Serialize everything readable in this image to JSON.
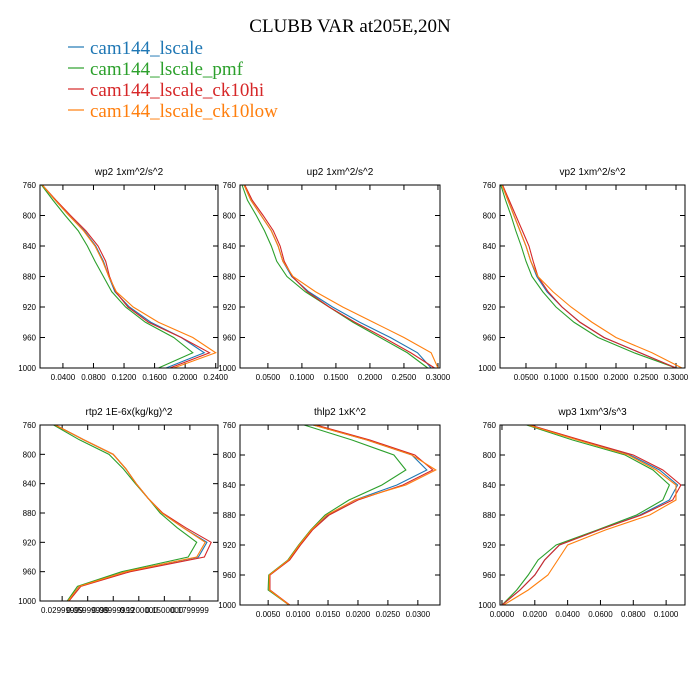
{
  "title": "CLUBB VAR at205E,20N",
  "legend": [
    {
      "name": "cam144_lscale",
      "color": "#1f77b4"
    },
    {
      "name": "cam144_lscale_pmf",
      "color": "#2ca02c"
    },
    {
      "name": "cam144_lscale_ck10hi",
      "color": "#d62728"
    },
    {
      "name": "cam144_lscale_ck10low",
      "color": "#ff7f0e"
    }
  ],
  "chart_data": [
    {
      "type": "line",
      "title": "wp2  1xm^2/s^2",
      "y": [
        760,
        780,
        800,
        820,
        840,
        860,
        880,
        900,
        920,
        940,
        960,
        980,
        1000
      ],
      "series": [
        {
          "values": [
            0.013,
            0.03,
            0.048,
            0.068,
            0.083,
            0.093,
            0.1,
            0.108,
            0.127,
            0.155,
            0.195,
            0.225,
            0.175
          ]
        },
        {
          "values": [
            0.012,
            0.027,
            0.043,
            0.06,
            0.072,
            0.082,
            0.093,
            0.104,
            0.122,
            0.148,
            0.185,
            0.21,
            0.165
          ]
        },
        {
          "values": [
            0.013,
            0.031,
            0.05,
            0.07,
            0.086,
            0.096,
            0.101,
            0.109,
            0.125,
            0.152,
            0.195,
            0.232,
            0.18
          ]
        },
        {
          "values": [
            0.013,
            0.03,
            0.048,
            0.067,
            0.082,
            0.092,
            0.1,
            0.11,
            0.132,
            0.165,
            0.21,
            0.24,
            0.185
          ]
        }
      ],
      "xlim": [
        0.01,
        0.243
      ],
      "ylim": [
        1000,
        760
      ],
      "xticks": [
        {
          "value": 0.04,
          "label": "0.0400"
        },
        {
          "value": 0.08,
          "label": "0.0800"
        },
        {
          "value": 0.12,
          "label": "0.1200"
        },
        {
          "value": 0.16,
          "label": "0.1600"
        },
        {
          "value": 0.2,
          "label": "0.2000"
        },
        {
          "value": 0.24,
          "label": "0.2400"
        }
      ],
      "yticks": [
        760,
        800,
        840,
        880,
        920,
        960,
        1000
      ]
    },
    {
      "type": "line",
      "title": "up2  1xm^2/s^2",
      "y": [
        760,
        780,
        800,
        820,
        840,
        860,
        880,
        900,
        920,
        940,
        960,
        980,
        1000
      ],
      "series": [
        {
          "values": [
            0.015,
            0.025,
            0.04,
            0.055,
            0.065,
            0.072,
            0.085,
            0.11,
            0.145,
            0.185,
            0.23,
            0.27,
            0.29
          ]
        },
        {
          "values": [
            0.012,
            0.02,
            0.033,
            0.045,
            0.055,
            0.063,
            0.078,
            0.105,
            0.14,
            0.175,
            0.215,
            0.255,
            0.285
          ]
        },
        {
          "values": [
            0.016,
            0.027,
            0.043,
            0.058,
            0.068,
            0.074,
            0.086,
            0.108,
            0.14,
            0.178,
            0.22,
            0.26,
            0.295
          ]
        },
        {
          "values": [
            0.015,
            0.025,
            0.04,
            0.055,
            0.065,
            0.072,
            0.087,
            0.12,
            0.16,
            0.205,
            0.25,
            0.29,
            0.3
          ]
        }
      ],
      "xlim": [
        0.009,
        0.303
      ],
      "ylim": [
        1000,
        760
      ],
      "xticks": [
        {
          "value": 0.05,
          "label": "0.0500"
        },
        {
          "value": 0.1,
          "label": "0.1000"
        },
        {
          "value": 0.15,
          "label": "0.1500"
        },
        {
          "value": 0.2,
          "label": "0.2000"
        },
        {
          "value": 0.25,
          "label": "0.2500"
        },
        {
          "value": 0.3,
          "label": "0.3000"
        }
      ],
      "yticks": [
        760,
        800,
        840,
        880,
        920,
        960,
        1000
      ]
    },
    {
      "type": "line",
      "title": "vp2  1xm^2/s^2",
      "y": [
        760,
        780,
        800,
        820,
        840,
        860,
        880,
        900,
        920,
        940,
        960,
        980,
        1000
      ],
      "series": [
        {
          "values": [
            0.01,
            0.02,
            0.03,
            0.04,
            0.05,
            0.058,
            0.068,
            0.085,
            0.11,
            0.14,
            0.18,
            0.24,
            0.3
          ]
        },
        {
          "values": [
            0.008,
            0.016,
            0.025,
            0.033,
            0.042,
            0.05,
            0.06,
            0.078,
            0.1,
            0.13,
            0.17,
            0.23,
            0.3
          ]
        },
        {
          "values": [
            0.011,
            0.022,
            0.033,
            0.044,
            0.055,
            0.062,
            0.07,
            0.087,
            0.11,
            0.14,
            0.18,
            0.24,
            0.3
          ]
        },
        {
          "values": [
            0.01,
            0.02,
            0.03,
            0.04,
            0.05,
            0.058,
            0.07,
            0.095,
            0.125,
            0.16,
            0.2,
            0.26,
            0.31
          ]
        }
      ],
      "xlim": [
        0.0067,
        0.315
      ],
      "ylim": [
        1000,
        760
      ],
      "xticks": [
        {
          "value": 0.05,
          "label": "0.0500"
        },
        {
          "value": 0.1,
          "label": "0.1000"
        },
        {
          "value": 0.15,
          "label": "0.1500"
        },
        {
          "value": 0.2,
          "label": "0.2000"
        },
        {
          "value": 0.25,
          "label": "0.2500"
        },
        {
          "value": 0.3,
          "label": "0.3000"
        }
      ],
      "yticks": [
        760,
        800,
        840,
        880,
        920,
        960,
        1000
      ]
    },
    {
      "type": "line",
      "title": "rtp2  1E-6x(kg/kg)^2",
      "y": [
        760,
        780,
        800,
        820,
        840,
        860,
        880,
        900,
        920,
        940,
        960,
        980,
        1000
      ],
      "series": [
        {
          "values": [
            0.022,
            0.055,
            0.09,
            0.105,
            0.117,
            0.131,
            0.147,
            0.172,
            0.2,
            0.19,
            0.105,
            0.05,
            0.037
          ]
        },
        {
          "values": [
            0.02,
            0.05,
            0.085,
            0.102,
            0.116,
            0.131,
            0.145,
            0.165,
            0.188,
            0.178,
            0.1,
            0.048,
            0.036
          ]
        },
        {
          "values": [
            0.022,
            0.055,
            0.09,
            0.105,
            0.117,
            0.131,
            0.148,
            0.175,
            0.205,
            0.197,
            0.11,
            0.052,
            0.038
          ]
        },
        {
          "values": [
            0.022,
            0.055,
            0.09,
            0.105,
            0.117,
            0.131,
            0.147,
            0.172,
            0.198,
            0.188,
            0.105,
            0.05,
            0.037
          ]
        }
      ],
      "xlim": [
        0.004,
        0.213
      ],
      "ylim": [
        1000,
        760
      ],
      "xticks": [
        {
          "value": 0.03,
          "label": "0.02999999"
        },
        {
          "value": 0.06,
          "label": "0.05999999"
        },
        {
          "value": 0.09,
          "label": "0.08999999"
        },
        {
          "value": 0.12,
          "label": "0.1200000"
        },
        {
          "value": 0.15,
          "label": "0.1500000"
        },
        {
          "value": 0.18,
          "label": "0.1799999"
        }
      ],
      "yticks": [
        760,
        800,
        840,
        880,
        920,
        960,
        1000
      ]
    },
    {
      "type": "line",
      "title": "thlp2  1xK^2",
      "y": [
        760,
        780,
        800,
        820,
        840,
        860,
        880,
        900,
        920,
        940,
        960,
        980,
        1000
      ],
      "series": [
        {
          "values": [
            0.0125,
            0.0215,
            0.029,
            0.0315,
            0.0265,
            0.0195,
            0.015,
            0.0123,
            0.0103,
            0.0085,
            0.0052,
            0.0052,
            0.0085
          ]
        },
        {
          "values": [
            0.011,
            0.019,
            0.026,
            0.028,
            0.024,
            0.0185,
            0.0145,
            0.0121,
            0.0101,
            0.0083,
            0.0051,
            0.005,
            0.0085
          ]
        },
        {
          "values": [
            0.013,
            0.022,
            0.0295,
            0.0325,
            0.0275,
            0.02,
            0.0152,
            0.0124,
            0.0104,
            0.0086,
            0.0053,
            0.0053,
            0.0086
          ]
        },
        {
          "values": [
            0.0125,
            0.0215,
            0.029,
            0.033,
            0.028,
            0.0195,
            0.0148,
            0.0122,
            0.0102,
            0.0084,
            0.0052,
            0.0052,
            0.0085
          ]
        }
      ],
      "xlim": [
        0.0003,
        0.0337
      ],
      "ylim": [
        1000,
        760
      ],
      "xticks": [
        {
          "value": 0.005,
          "label": "0.0050"
        },
        {
          "value": 0.01,
          "label": "0.0100"
        },
        {
          "value": 0.015,
          "label": "0.0150"
        },
        {
          "value": 0.02,
          "label": "0.0200"
        },
        {
          "value": 0.025,
          "label": "0.0250"
        },
        {
          "value": 0.03,
          "label": "0.0300"
        }
      ],
      "yticks": [
        760,
        800,
        840,
        880,
        920,
        960,
        1000
      ]
    },
    {
      "type": "line",
      "title": "wp3  1xm^3/s^3",
      "y": [
        760,
        780,
        800,
        820,
        840,
        860,
        880,
        900,
        920,
        940,
        960,
        980,
        1000
      ],
      "series": [
        {
          "values": [
            0.017,
            0.047,
            0.078,
            0.096,
            0.107,
            0.102,
            0.084,
            0.059,
            0.035,
            0.026,
            0.02,
            0.011,
            0
          ]
        },
        {
          "values": [
            0.015,
            0.043,
            0.075,
            0.092,
            0.102,
            0.098,
            0.082,
            0.058,
            0.033,
            0.022,
            0.016,
            0.009,
            0
          ]
        },
        {
          "values": [
            0.017,
            0.048,
            0.08,
            0.098,
            0.109,
            0.104,
            0.085,
            0.059,
            0.035,
            0.026,
            0.02,
            0.011,
            0
          ]
        },
        {
          "values": [
            0.016,
            0.046,
            0.077,
            0.094,
            0.106,
            0.106,
            0.09,
            0.063,
            0.04,
            0.034,
            0.028,
            0.016,
            0.001
          ]
        }
      ],
      "xlim": [
        -0.0012,
        0.1115
      ],
      "ylim": [
        1000,
        760
      ],
      "xticks": [
        {
          "value": 0,
          "label": "0.0000"
        },
        {
          "value": 0.02,
          "label": "0.0200"
        },
        {
          "value": 0.04,
          "label": "0.0400"
        },
        {
          "value": 0.06,
          "label": "0.0600"
        },
        {
          "value": 0.08,
          "label": "0.0800"
        },
        {
          "value": 0.1,
          "label": "0.1000"
        }
      ],
      "yticks": [
        760,
        800,
        840,
        880,
        920,
        960,
        1000
      ]
    }
  ]
}
